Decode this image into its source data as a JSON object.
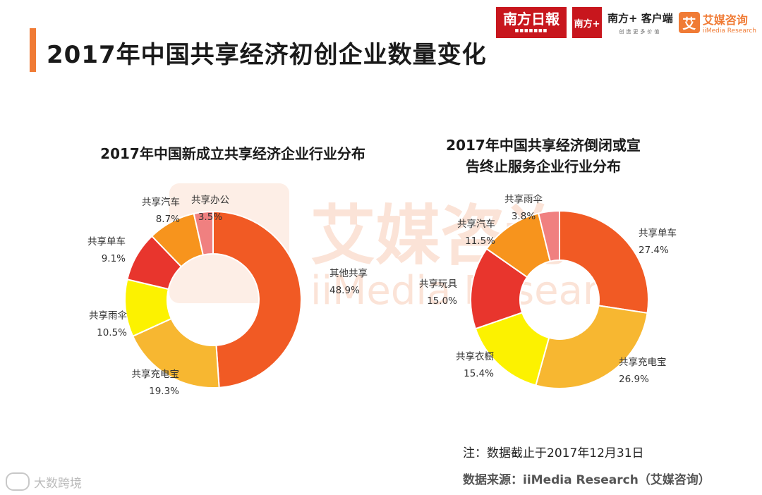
{
  "header": {
    "title": "2017年中国共享经济初创企业数量变化",
    "logos": {
      "nanfang_daily": "南方日報",
      "nanfang_icon": "南方+",
      "client_main": "南方+ 客户端",
      "client_sub": "创造更多价值",
      "imedia_mark": "艾",
      "imedia_main": "艾媒咨询",
      "imedia_sub": "iiMedia Research"
    }
  },
  "watermark": {
    "main": "艾媒咨询",
    "sub": "iiMedia Research"
  },
  "chart_data": [
    {
      "type": "pie",
      "donut": true,
      "title": "2017年中国新成立共享经济企业行业分布",
      "slices": [
        {
          "label": "其他共享",
          "value": 48.9,
          "display": "48.9%",
          "color": "#f15a24"
        },
        {
          "label": "共享充电宝",
          "value": 19.3,
          "display": "19.3%",
          "color": "#f7b731"
        },
        {
          "label": "共享雨伞",
          "value": 10.5,
          "display": "10.5%",
          "color": "#fcf200"
        },
        {
          "label": "共享单车",
          "value": 9.1,
          "display": "9.1%",
          "color": "#e8352d"
        },
        {
          "label": "共享汽车",
          "value": 8.7,
          "display": "8.7%",
          "color": "#f7941d"
        },
        {
          "label": "共享办公",
          "value": 3.5,
          "display": "3.5%",
          "color": "#f08080"
        }
      ]
    },
    {
      "type": "pie",
      "donut": true,
      "title": "2017年中国共享经济倒闭或宣告终止服务企业行业分布",
      "title_lines": [
        "2017年中国共享经济倒闭或宣",
        "告终止服务企业行业分布"
      ],
      "slices": [
        {
          "label": "共享单车",
          "value": 27.4,
          "display": "27.4%",
          "color": "#f15a24"
        },
        {
          "label": "共享充电宝",
          "value": 26.9,
          "display": "26.9%",
          "color": "#f7b731"
        },
        {
          "label": "共享衣橱",
          "value": 15.4,
          "display": "15.4%",
          "color": "#fcf200"
        },
        {
          "label": "共享玩具",
          "value": 15.0,
          "display": "15.0%",
          "color": "#e8352d"
        },
        {
          "label": "共享汽车",
          "value": 11.5,
          "display": "11.5%",
          "color": "#f7941d"
        },
        {
          "label": "共享雨伞",
          "value": 3.8,
          "display": "3.8%",
          "color": "#f08080"
        }
      ]
    }
  ],
  "footer": {
    "note": "注：数据截止于2017年12月31日",
    "source": "数据来源：iiMedia Research（艾媒咨询）",
    "corner_watermark": "大数跨境"
  }
}
